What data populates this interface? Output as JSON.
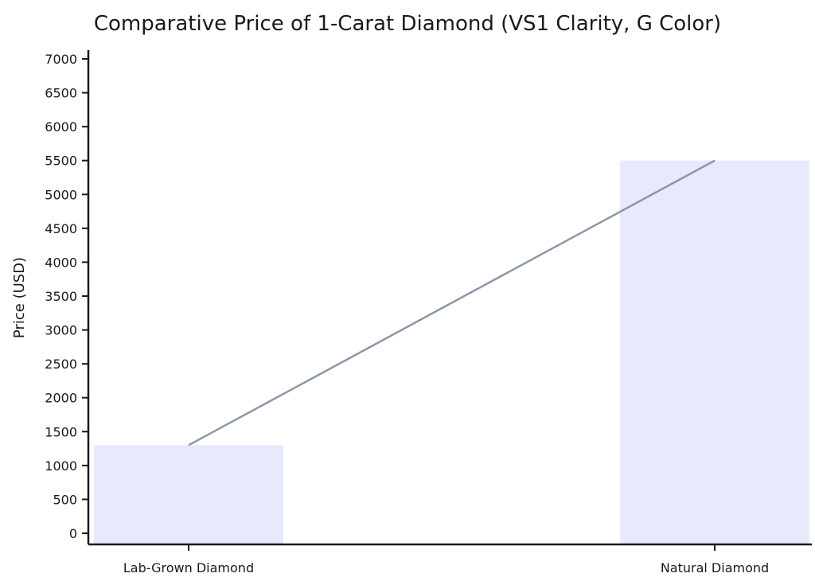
{
  "chart_data": {
    "type": "bar",
    "title": "Comparative Price of 1-Carat Diamond (VS1 Clarity, G Color)",
    "xlabel": "",
    "ylabel": "Price (USD)",
    "categories": [
      "Lab-Grown Diamond",
      "Natural Diamond"
    ],
    "values": [
      1300,
      5500
    ],
    "ylim": [
      0,
      7000
    ],
    "yticks": [
      0,
      500,
      1000,
      1500,
      2000,
      2500,
      3000,
      3500,
      4000,
      4500,
      5000,
      5500,
      6000,
      6500,
      7000
    ],
    "overlay_line": true,
    "grid": false,
    "legend": "none",
    "colors": {
      "bar": "#e8eafc",
      "line": "#8a97a8",
      "axis": "#1a1a1a"
    }
  }
}
